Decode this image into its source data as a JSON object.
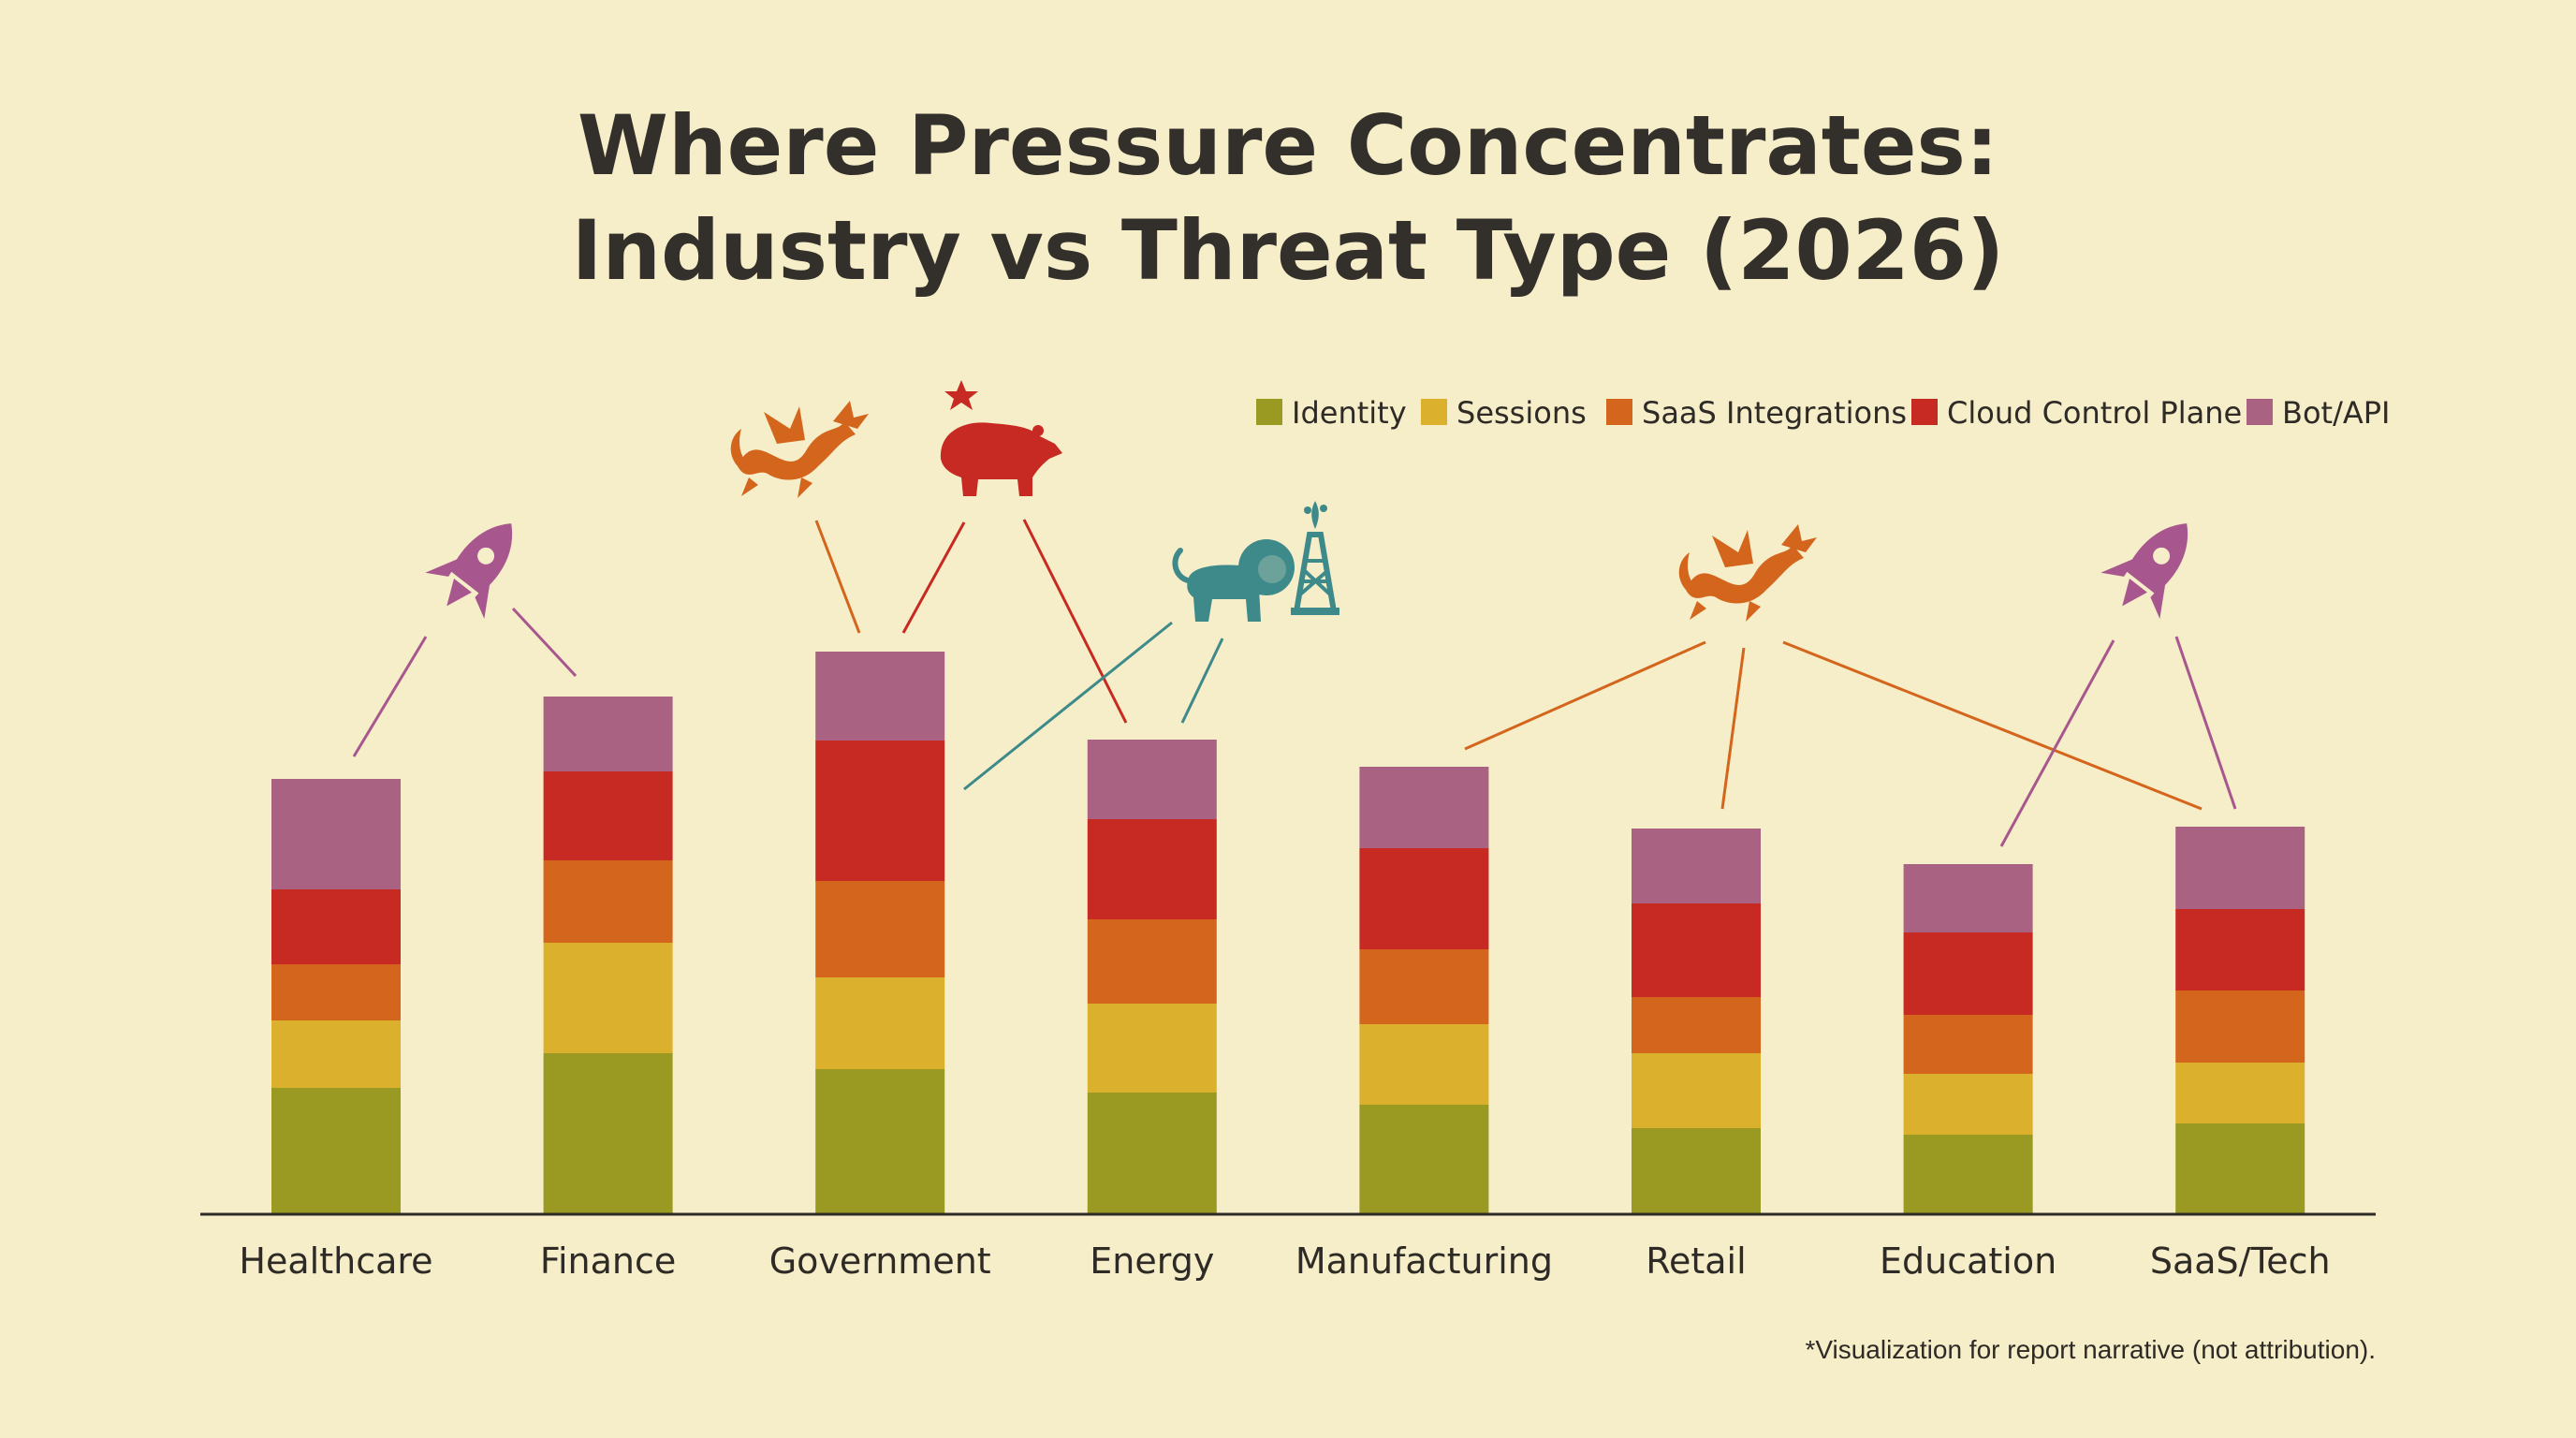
{
  "chart_data": {
    "type": "bar",
    "stacked": true,
    "title_line1": "Where Pressure Concentrates:",
    "title_line2": "Industry vs Threat Type (2026)",
    "xlabel": "",
    "ylabel": "",
    "ylim": [
      0,
      600
    ],
    "grid": false,
    "legend_position": "top-right",
    "categories": [
      "Healthcare",
      "Finance",
      "Government",
      "Energy",
      "Manufacturing",
      "Retail",
      "Education",
      "SaaS/Tech"
    ],
    "series": [
      {
        "name": "Identity",
        "color": "#9a9a22",
        "values": [
          135,
          172,
          155,
          130,
          117,
          92,
          85,
          97
        ]
      },
      {
        "name": "Sessions",
        "color": "#dbb02c",
        "values": [
          72,
          118,
          98,
          95,
          86,
          80,
          65,
          65
        ]
      },
      {
        "name": "SaaS Integrations",
        "color": "#d4651c",
        "values": [
          60,
          88,
          103,
          90,
          80,
          60,
          63,
          77
        ]
      },
      {
        "name": "Cloud Control Plane",
        "color": "#c62a22",
        "values": [
          80,
          95,
          150,
          107,
          108,
          100,
          88,
          87
        ]
      },
      {
        "name": "Bot/API",
        "color": "#aa6283",
        "values": [
          118,
          80,
          95,
          85,
          87,
          80,
          73,
          88
        ]
      }
    ],
    "annotation_icons": [
      {
        "icon": "rocket-icon",
        "color": "#a8578e",
        "targets": [
          "Healthcare",
          "Finance"
        ]
      },
      {
        "icon": "dragon-icon",
        "color": "#d4651c",
        "targets": [
          "Government"
        ]
      },
      {
        "icon": "bear-icon",
        "color": "#c62a22",
        "targets": [
          "Government",
          "Energy"
        ]
      },
      {
        "icon": "lion-icon",
        "color": "#3e8a8a",
        "targets": [
          "Government",
          "Energy"
        ]
      },
      {
        "icon": "oil-derrick-icon",
        "color": "#3e8a8a",
        "targets": []
      },
      {
        "icon": "dragon-icon",
        "color": "#d4651c",
        "targets": [
          "Manufacturing",
          "Retail",
          "SaaS/Tech"
        ]
      },
      {
        "icon": "rocket-icon",
        "color": "#a8578e",
        "targets": [
          "Education",
          "SaaS/Tech"
        ]
      }
    ],
    "footnote": "*Visualization for report narrative (not attribution)."
  }
}
